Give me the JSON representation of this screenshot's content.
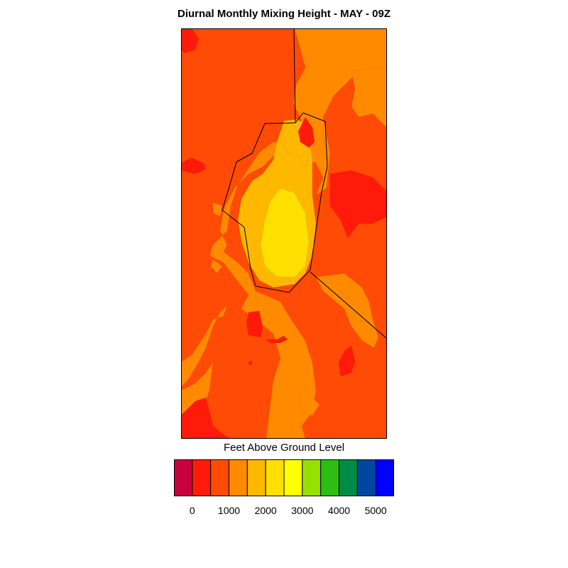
{
  "title": "Diurnal Monthly Mixing Height - MAY - 09Z",
  "legend": {
    "title": "Feet Above Ground Level",
    "colors": [
      "#c8003c",
      "#ff1a0a",
      "#ff4b05",
      "#ff8a00",
      "#ffb800",
      "#ffe000",
      "#ffff00",
      "#96e000",
      "#2dbe14",
      "#008c46",
      "#0046a0",
      "#0000ff"
    ],
    "tick_labels": [
      "0",
      "1000",
      "2000",
      "3000",
      "4000",
      "5000"
    ]
  },
  "map": {
    "background_color": "#ff4b05",
    "level_colors": {
      "red": "#ff1a0a",
      "orange": "#ff8a00",
      "amber": "#ffb800",
      "yellow": "#ffe000"
    },
    "outline_color": "#000000"
  }
}
